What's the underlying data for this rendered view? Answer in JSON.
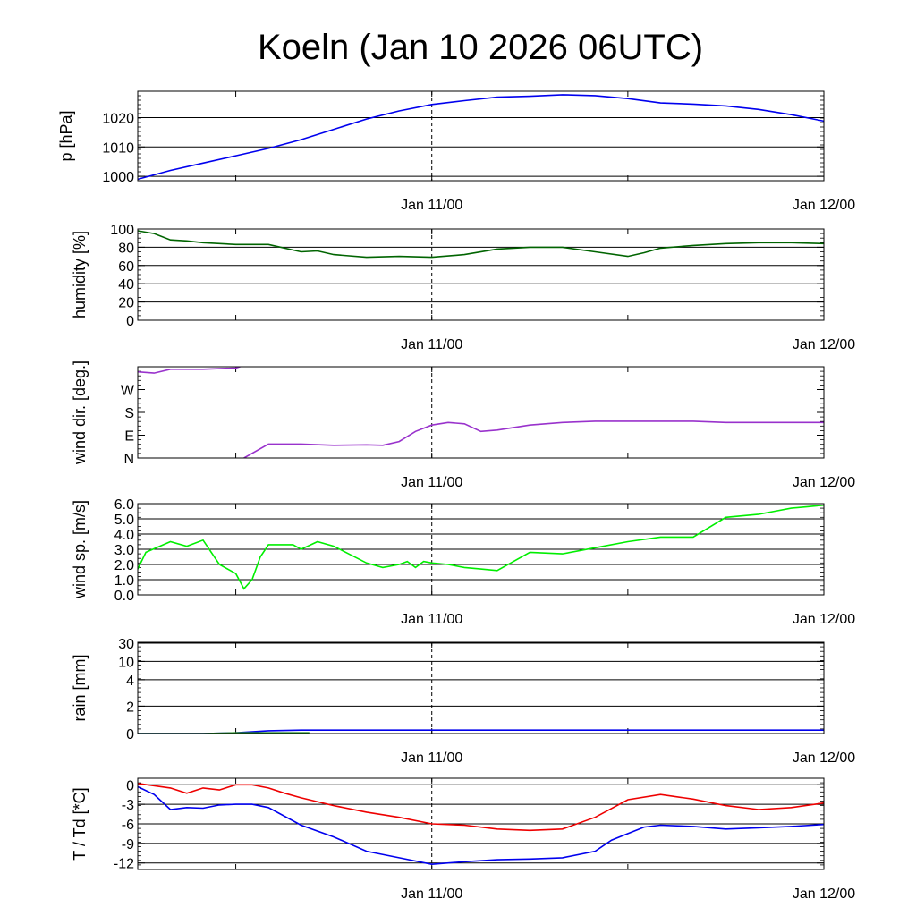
{
  "title": "Koeln (Jan 10 2026 06UTC)",
  "chart_data": [
    {
      "type": "line",
      "ylabel": "p [hPa]",
      "ylim": [
        998.5,
        1029
      ],
      "yticks": [
        1000,
        1010,
        1020
      ],
      "ytick_labels": [
        "1000",
        "1010",
        "1020"
      ],
      "xlim": [
        -18,
        24
      ],
      "xtick_labels": [
        "Jan 11/00",
        "Jan 12/00"
      ],
      "series": [
        {
          "name": "pressure",
          "color": "#0000ee",
          "x": [
            -18,
            -16,
            -14,
            -12,
            -10,
            -8,
            -6,
            -4,
            -2,
            0,
            2,
            4,
            6,
            8,
            10,
            12,
            14,
            16,
            18,
            20,
            22,
            24
          ],
          "y": [
            999.0,
            1002.0,
            1004.5,
            1007.0,
            1009.5,
            1012.5,
            1016.0,
            1019.5,
            1022.3,
            1024.5,
            1025.8,
            1027.0,
            1027.3,
            1027.8,
            1027.5,
            1026.5,
            1025.0,
            1024.6,
            1024.0,
            1022.8,
            1021.0,
            1018.8
          ]
        }
      ]
    },
    {
      "type": "line",
      "ylabel": "humidity [%]",
      "ylim": [
        0,
        100
      ],
      "yticks": [
        0,
        20,
        40,
        60,
        80,
        100
      ],
      "ytick_labels": [
        "0",
        "20",
        "40",
        "60",
        "80",
        "100"
      ],
      "xlim": [
        -18,
        24
      ],
      "xtick_labels": [
        "Jan 11/00",
        "Jan 12/00"
      ],
      "series": [
        {
          "name": "humidity",
          "color": "#006400",
          "x": [
            -18,
            -17,
            -16,
            -15,
            -14,
            -12,
            -10,
            -8,
            -7,
            -6,
            -4,
            -2,
            0,
            2,
            4,
            6,
            8,
            10,
            12,
            13,
            14,
            16,
            18,
            20,
            22,
            24
          ],
          "y": [
            98,
            95,
            88,
            87,
            85,
            83,
            83,
            75,
            76,
            72,
            69,
            70,
            69,
            72,
            78,
            80,
            80,
            75,
            70,
            74,
            79,
            82,
            84,
            85,
            85,
            84
          ]
        }
      ]
    },
    {
      "type": "line",
      "ylabel": "wind dir. [deg.]",
      "ylim": [
        0,
        360
      ],
      "yticks": [
        0,
        90,
        180,
        270
      ],
      "ytick_labels": [
        "N",
        "E",
        "S",
        "W"
      ],
      "xlim": [
        -18,
        24
      ],
      "xtick_labels": [
        "Jan 11/00",
        "Jan 12/00"
      ],
      "series": [
        {
          "name": "wind direction (segment 1)",
          "color": "#9932cc",
          "x": [
            -18,
            -17,
            -16,
            -14,
            -12,
            -11.5
          ],
          "y": [
            340,
            335,
            350,
            350,
            355,
            365
          ]
        },
        {
          "name": "wind direction (segment 2)",
          "color": "#9932cc",
          "x": [
            -11.5,
            -10,
            -8,
            -6,
            -4,
            -3,
            -2,
            -1,
            0,
            1,
            2,
            3,
            4,
            6,
            8,
            10,
            12,
            14,
            16,
            18,
            20,
            22,
            24
          ],
          "y": [
            0,
            55,
            55,
            50,
            52,
            50,
            65,
            105,
            130,
            140,
            135,
            105,
            110,
            130,
            140,
            145,
            145,
            145,
            145,
            140,
            140,
            140,
            140
          ]
        }
      ]
    },
    {
      "type": "line",
      "ylabel": "wind sp. [m/s]",
      "ylim": [
        0,
        6
      ],
      "yticks": [
        0,
        1,
        2,
        3,
        4,
        5,
        6
      ],
      "ytick_labels": [
        "0.0",
        "1.0",
        "2.0",
        "3.0",
        "4.0",
        "5.0",
        "6.0"
      ],
      "xlim": [
        -18,
        24
      ],
      "xtick_labels": [
        "Jan 11/00",
        "Jan 12/00"
      ],
      "series": [
        {
          "name": "wind speed",
          "color": "#00ee00",
          "x": [
            -18,
            -17.5,
            -16,
            -15,
            -14,
            -13,
            -12,
            -11.5,
            -11,
            -10.5,
            -10,
            -8.5,
            -8,
            -7,
            -6,
            -4,
            -3,
            -2,
            -1.5,
            -1,
            -0.5,
            0,
            1,
            2,
            3,
            4,
            6,
            8,
            10,
            12,
            14,
            16,
            18,
            20,
            21,
            22,
            23,
            24
          ],
          "y": [
            1.7,
            2.8,
            3.5,
            3.2,
            3.6,
            2.0,
            1.4,
            0.4,
            1.0,
            2.5,
            3.3,
            3.3,
            3.0,
            3.5,
            3.2,
            2.1,
            1.8,
            2.0,
            2.2,
            1.8,
            2.2,
            2.1,
            2.0,
            1.8,
            1.7,
            1.6,
            2.8,
            2.7,
            3.1,
            3.5,
            3.8,
            3.8,
            5.1,
            5.3,
            5.5,
            5.7,
            5.8,
            5.9
          ]
        }
      ]
    },
    {
      "type": "line",
      "ylabel": "rain [mm]",
      "ylim": [
        0,
        30
      ],
      "yticks": [
        0,
        2,
        4,
        10,
        30
      ],
      "ytick_labels": [
        "0",
        "2",
        "4",
        "10",
        "30"
      ],
      "xlim": [
        -18,
        24
      ],
      "xtick_labels": [
        "Jan 11/00",
        "Jan 12/00"
      ],
      "series": [
        {
          "name": "rain (accumulated)",
          "color": "#0000ee",
          "x": [
            -18,
            -14,
            -12,
            -10,
            -8,
            0,
            24
          ],
          "y": [
            0,
            0,
            0.05,
            0.2,
            0.25,
            0.25,
            0.25
          ]
        },
        {
          "name": "rain (green)",
          "color": "#228b22",
          "x": [
            -18,
            -14,
            -12,
            -10,
            -8,
            -7.5
          ],
          "y": [
            0,
            0,
            0.05,
            0.05,
            0.05,
            0.05
          ]
        }
      ]
    },
    {
      "type": "line",
      "ylabel": "T / Td [*C]",
      "ylim": [
        -13,
        1
      ],
      "yticks": [
        0,
        -3,
        -6,
        -9,
        -12
      ],
      "ytick_labels": [
        "0",
        "-3",
        "-6",
        "-9",
        "-12"
      ],
      "xlim": [
        -18,
        24
      ],
      "xtick_labels": [
        "Jan 11/00",
        "Jan 12/00"
      ],
      "series": [
        {
          "name": "T",
          "color": "#ee0000",
          "x": [
            -18,
            -16,
            -15,
            -14,
            -13,
            -12,
            -11,
            -10,
            -9,
            -8,
            -6,
            -4,
            -2,
            0,
            2,
            4,
            6,
            8,
            10,
            12,
            14,
            16,
            18,
            20,
            22,
            24
          ],
          "y": [
            0.2,
            -0.5,
            -1.3,
            -0.5,
            -0.8,
            0,
            0,
            -0.5,
            -1.3,
            -2.0,
            -3.2,
            -4.2,
            -5.0,
            -6.0,
            -6.2,
            -6.8,
            -7.0,
            -6.8,
            -5.0,
            -2.3,
            -1.5,
            -2.2,
            -3.2,
            -3.8,
            -3.5,
            -2.8
          ]
        },
        {
          "name": "Td",
          "color": "#0000ee",
          "x": [
            -18,
            -17,
            -16,
            -15,
            -14,
            -13,
            -12,
            -11,
            -10,
            -8,
            -6,
            -4,
            -2,
            0,
            2,
            4,
            6,
            8,
            10,
            11,
            12,
            13,
            14,
            16,
            18,
            20,
            22,
            24
          ],
          "y": [
            -0.3,
            -1.5,
            -3.8,
            -3.5,
            -3.6,
            -3.1,
            -3.0,
            -3.0,
            -3.5,
            -6.2,
            -8.0,
            -10.2,
            -11.2,
            -12.2,
            -11.8,
            -11.5,
            -11.4,
            -11.2,
            -10.2,
            -8.5,
            -7.5,
            -6.5,
            -6.2,
            -6.4,
            -6.8,
            -6.6,
            -6.4,
            -6.1
          ]
        }
      ]
    }
  ]
}
